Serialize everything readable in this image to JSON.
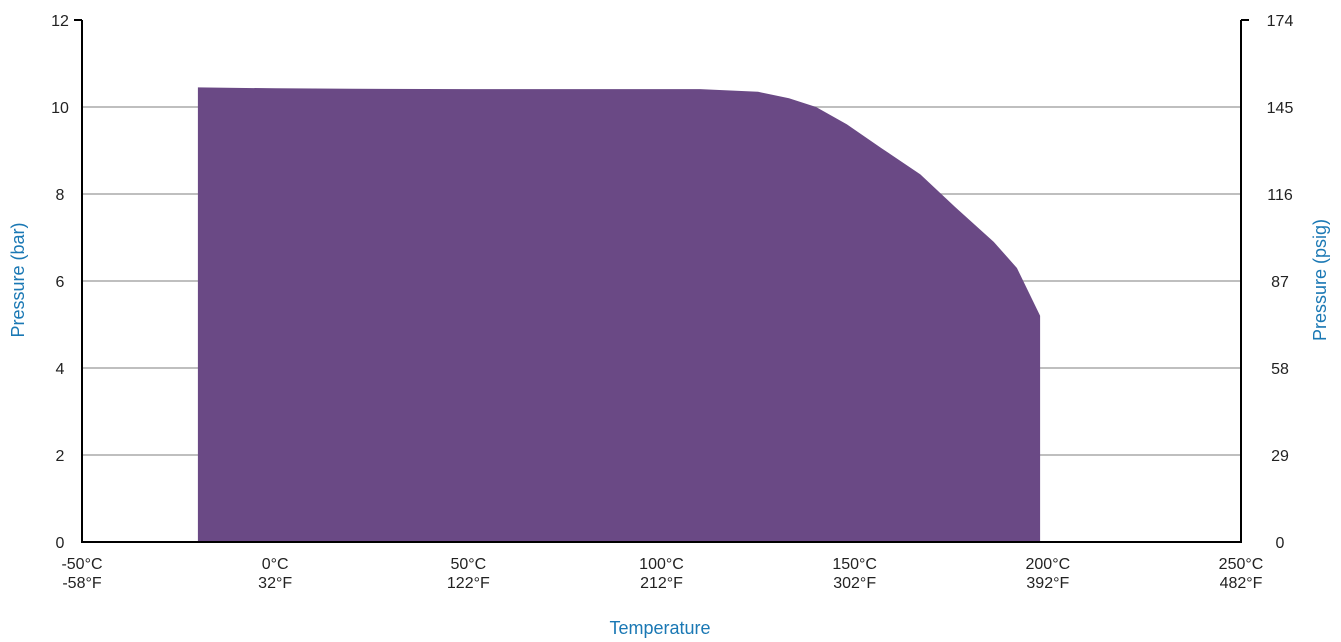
{
  "chart_data": {
    "type": "area",
    "title": "",
    "xlabel": "Temperature",
    "ylabel": "Pressure (bar)",
    "y2label": "Pressure (psig)",
    "xlim": [
      -50,
      250
    ],
    "ylim": [
      0,
      12
    ],
    "grid": true,
    "legend": "none",
    "x_ticks": [
      {
        "c": "-50°C",
        "f": "-58°F",
        "value": -50
      },
      {
        "c": "0°C",
        "f": "32°F",
        "value": 0
      },
      {
        "c": "50°C",
        "f": "122°F",
        "value": 50
      },
      {
        "c": "100°C",
        "f": "212°F",
        "value": 100
      },
      {
        "c": "150°C",
        "f": "302°F",
        "value": 150
      },
      {
        "c": "200°C",
        "f": "392°F",
        "value": 200
      },
      {
        "c": "250°C",
        "f": "482°F",
        "value": 250
      }
    ],
    "y_ticks": [
      "0",
      "2",
      "4",
      "6",
      "8",
      "10",
      "12"
    ],
    "y2_ticks": [
      "0",
      "29",
      "58",
      "87",
      "116",
      "145",
      "174"
    ],
    "series": [
      {
        "x": [
          -20,
          0,
          20,
          50,
          80,
          110,
          125,
          133,
          140,
          148,
          157,
          167,
          176,
          186,
          192,
          198,
          198
        ],
        "y": [
          10.45,
          10.43,
          10.42,
          10.41,
          10.41,
          10.41,
          10.35,
          10.2,
          10.0,
          9.6,
          9.05,
          8.45,
          7.7,
          6.9,
          6.3,
          5.2,
          0
        ]
      }
    ],
    "colors": {
      "fill": "#6a4985",
      "grid": "#aaaaaa",
      "axis": "#000000",
      "axis_title": "#1a78b4"
    }
  }
}
